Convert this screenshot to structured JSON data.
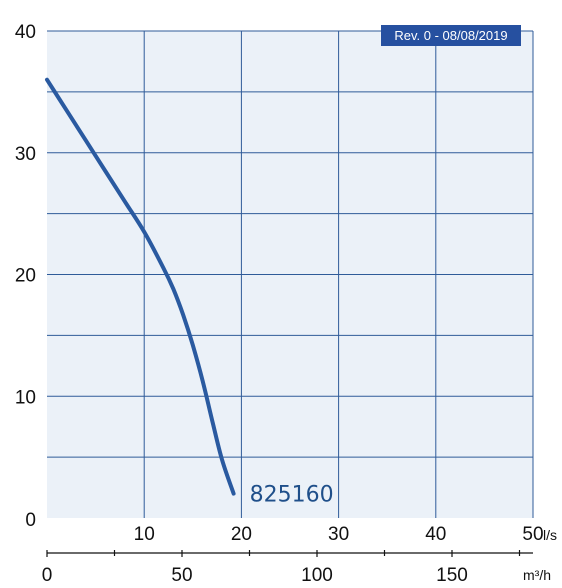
{
  "chart_data": {
    "type": "line",
    "title": "",
    "revision_badge": "Rev. 0 - 08/08/2019",
    "x": {
      "label": "l/s",
      "lim": [
        0,
        50
      ],
      "ticks": [
        "10",
        "20",
        "30",
        "40",
        "50"
      ]
    },
    "x2": {
      "label": "m³/h",
      "lim": [
        0,
        180
      ],
      "ticks": [
        "0",
        "50",
        "100",
        "150"
      ],
      "tick_values": [
        0,
        50,
        100,
        150
      ]
    },
    "y": {
      "label": "",
      "lim": [
        0,
        40
      ],
      "ticks": [
        "0",
        "10",
        "20",
        "30",
        "40"
      ]
    },
    "grid": true,
    "series": [
      {
        "name": "825160",
        "color": "#2a5aa0",
        "x": [
          0,
          2,
          4,
          6,
          8,
          10,
          12,
          13,
          14,
          15,
          16,
          17,
          18,
          19.2
        ],
        "y": [
          36,
          33.5,
          31.0,
          28.5,
          26.0,
          23.5,
          20.5,
          18.8,
          16.7,
          14.2,
          11.3,
          8.0,
          4.8,
          2.0
        ]
      }
    ],
    "colors": {
      "plot_background": "#ebf1f8",
      "grid": "#2f5b99",
      "badge": "#2650a0"
    }
  }
}
